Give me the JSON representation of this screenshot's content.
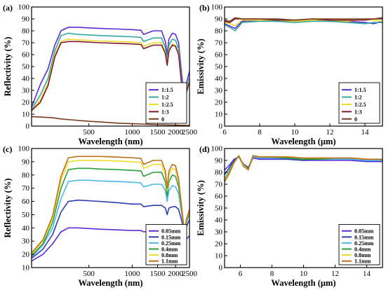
{
  "chart_data": [
    {
      "panel_label": "(a)",
      "type": "line",
      "xlabel": "Wavelength (nm)",
      "ylabel": "Reflectivity (%)",
      "xscale": "log",
      "xlim": [
        200,
        2500
      ],
      "ylim": [
        0,
        100
      ],
      "xticks": [
        500,
        1000,
        1500,
        2000,
        2500
      ],
      "xtick_labels": [
        "500",
        "1000",
        "1500",
        "2000",
        "2500"
      ],
      "yticks": [
        0,
        10,
        20,
        30,
        40,
        50,
        60,
        70,
        80,
        90,
        100
      ],
      "grid": false,
      "legend": "bottom-right",
      "series": [
        {
          "name": "1:1.5",
          "color": "#5b2bd6",
          "x": [
            200,
            230,
            260,
            290,
            320,
            360,
            420,
            500,
            600,
            800,
            1000,
            1150,
            1200,
            1400,
            1600,
            1700,
            1750,
            1800,
            1900,
            2000,
            2100,
            2200,
            2300,
            2400,
            2500
          ],
          "y": [
            16,
            35,
            48,
            68,
            80,
            83,
            83,
            82.5,
            82,
            81.5,
            81,
            80.5,
            77,
            80,
            80,
            71,
            60,
            73,
            78,
            77,
            70,
            45,
            24,
            38,
            46
          ]
        },
        {
          "name": "1:2",
          "color": "#31a8a0",
          "x": [
            200,
            230,
            260,
            290,
            320,
            360,
            420,
            500,
            600,
            800,
            1000,
            1150,
            1200,
            1400,
            1600,
            1700,
            1750,
            1800,
            1900,
            2000,
            2100,
            2200,
            2300,
            2400,
            2500
          ],
          "y": [
            14,
            26,
            40,
            63,
            76,
            78,
            77,
            76.5,
            76,
            75.5,
            75,
            74.5,
            71,
            74,
            74,
            66,
            55,
            68,
            73,
            72,
            65,
            40,
            22,
            33,
            41
          ]
        },
        {
          "name": "1:2.5",
          "color": "#ecdc2c",
          "x": [
            200,
            230,
            260,
            290,
            320,
            360,
            420,
            500,
            600,
            800,
            1000,
            1150,
            1200,
            1400,
            1600,
            1700,
            1750,
            1800,
            1900,
            2000,
            2100,
            2200,
            2300,
            2400,
            2500
          ],
          "y": [
            13,
            22,
            36,
            60,
            71,
            73,
            72.5,
            72,
            71.5,
            71,
            70.5,
            70,
            67,
            70,
            70,
            62,
            52,
            64,
            69,
            68,
            61,
            37,
            21,
            31,
            38
          ]
        },
        {
          "name": "1:3",
          "color": "#7e1a2c",
          "x": [
            200,
            230,
            260,
            290,
            320,
            360,
            420,
            500,
            600,
            800,
            1000,
            1150,
            1200,
            1400,
            1600,
            1700,
            1750,
            1800,
            1900,
            2000,
            2100,
            2200,
            2300,
            2400,
            2500
          ],
          "y": [
            13,
            20,
            34,
            58,
            70,
            71,
            71,
            70.5,
            70,
            69.5,
            69,
            68.5,
            65,
            68,
            68,
            61,
            51,
            63,
            68,
            67,
            60,
            36,
            20,
            30,
            37
          ]
        },
        {
          "name": "0",
          "color": "#7a3b1c",
          "x": [
            200,
            240,
            280,
            320,
            400,
            500,
            600,
            800,
            1000,
            1500,
            2000,
            2500
          ],
          "y": [
            8,
            7.5,
            7,
            6,
            5,
            4,
            3.5,
            2.5,
            2,
            1.2,
            0.8,
            0.5
          ]
        }
      ]
    },
    {
      "panel_label": "(b)",
      "type": "line",
      "xlabel": "Wavelength (μm)",
      "ylabel": "Emissivity (%)",
      "xlim": [
        6,
        15
      ],
      "ylim": [
        0,
        100
      ],
      "xticks": [
        6,
        8,
        10,
        12,
        14
      ],
      "yticks": [
        0,
        10,
        20,
        30,
        40,
        50,
        60,
        70,
        80,
        90,
        100
      ],
      "grid": false,
      "legend": "bottom-right",
      "series": [
        {
          "name": "1:1.5",
          "color": "#5b2bd6",
          "x": [
            6,
            6.3,
            6.6,
            7,
            8,
            9,
            10,
            11,
            12,
            13,
            14,
            14.5,
            15
          ],
          "y": [
            86,
            84,
            82,
            88,
            89,
            88,
            88,
            89,
            88,
            88,
            87,
            86,
            88
          ]
        },
        {
          "name": "1:2",
          "color": "#31a8a0",
          "x": [
            6,
            6.3,
            6.6,
            7,
            8,
            9,
            10,
            11,
            12,
            13,
            14,
            14.5,
            15
          ],
          "y": [
            85,
            83,
            80,
            87,
            88,
            88,
            87,
            88,
            88,
            87,
            86,
            87,
            87
          ]
        },
        {
          "name": "1:2.5",
          "color": "#ecdc2c",
          "x": [
            6,
            6.3,
            6.6,
            7,
            8,
            9,
            10,
            11,
            12,
            13,
            14,
            14.5,
            15
          ],
          "y": [
            87,
            86,
            84,
            89,
            89,
            89,
            88,
            89,
            89,
            88,
            90,
            89,
            88
          ]
        },
        {
          "name": "1:3",
          "color": "#7e1a2c",
          "x": [
            6,
            6.3,
            6.6,
            7,
            8,
            9,
            10,
            11,
            12,
            13,
            14,
            14.5,
            15
          ],
          "y": [
            88,
            87,
            90,
            90,
            90,
            89,
            89,
            90,
            89,
            89,
            89,
            90,
            90
          ]
        },
        {
          "name": "0",
          "color": "#7a3b1c",
          "x": [
            6,
            6.3,
            6.6,
            7,
            8,
            9,
            10,
            11,
            12,
            13,
            14,
            14.5,
            15
          ],
          "y": [
            89,
            88,
            91,
            90,
            90,
            90,
            89,
            90,
            90,
            90,
            90,
            90,
            91
          ]
        }
      ]
    },
    {
      "panel_label": "(c)",
      "type": "line",
      "xlabel": "Wavelength (nm)",
      "ylabel": "Reflectivity (%)",
      "xscale": "log",
      "xlim": [
        200,
        2500
      ],
      "ylim": [
        10,
        100
      ],
      "xticks": [
        500,
        1000,
        1500,
        2000,
        2500
      ],
      "xtick_labels": [
        "500",
        "1000",
        "1500",
        "2000",
        "2500"
      ],
      "yticks": [
        10,
        20,
        30,
        40,
        50,
        60,
        70,
        80,
        90,
        100
      ],
      "grid": false,
      "legend": "bottom-right",
      "series": [
        {
          "name": "0.05mm",
          "color": "#5b2bd6",
          "x": [
            200,
            240,
            280,
            320,
            360,
            420,
            500,
            600,
            800,
            1000,
            1150,
            1200,
            1400,
            1600,
            1700,
            1750,
            1800,
            1900,
            2000,
            2100,
            2200,
            2300,
            2400,
            2500
          ],
          "y": [
            15,
            20,
            28,
            37,
            40,
            40,
            39.5,
            39,
            38.5,
            38,
            38,
            37,
            38,
            38,
            36,
            33,
            37,
            38,
            38,
            37,
            33,
            30,
            32,
            34
          ]
        },
        {
          "name": "0.15mm",
          "color": "#2d3fb0",
          "x": [
            200,
            240,
            280,
            320,
            360,
            420,
            500,
            600,
            800,
            1000,
            1150,
            1200,
            1400,
            1600,
            1700,
            1750,
            1800,
            1900,
            2000,
            2100,
            2200,
            2300,
            2400,
            2500
          ],
          "y": [
            17,
            24,
            35,
            52,
            60,
            61,
            60.5,
            60,
            59,
            58,
            58,
            56,
            57,
            57,
            55,
            50,
            55,
            56,
            56,
            54,
            46,
            37,
            42,
            46
          ]
        },
        {
          "name": "0.25mm",
          "color": "#4ab8e8",
          "x": [
            200,
            240,
            280,
            320,
            360,
            420,
            500,
            600,
            800,
            1000,
            1150,
            1200,
            1400,
            1600,
            1700,
            1750,
            1800,
            1900,
            2000,
            2100,
            2200,
            2300,
            2400,
            2500
          ],
          "y": [
            18,
            27,
            40,
            62,
            75,
            76,
            76,
            75.5,
            75,
            74.5,
            74,
            71,
            73,
            73,
            68,
            60,
            68,
            72,
            71,
            66,
            52,
            38,
            45,
            50
          ]
        },
        {
          "name": "0.4mm",
          "color": "#2aa03a",
          "x": [
            200,
            240,
            280,
            320,
            360,
            420,
            500,
            600,
            800,
            1000,
            1150,
            1200,
            1400,
            1600,
            1700,
            1750,
            1800,
            1900,
            2000,
            2100,
            2200,
            2300,
            2400,
            2500
          ],
          "y": [
            19,
            28,
            44,
            70,
            84,
            85,
            85,
            84.5,
            84,
            83.5,
            83,
            79,
            82,
            82,
            75,
            64,
            75,
            80,
            79,
            71,
            54,
            38,
            46,
            52
          ]
        },
        {
          "name": "0.8mm",
          "color": "#ecdc2c",
          "x": [
            200,
            240,
            280,
            320,
            360,
            420,
            500,
            600,
            800,
            1000,
            1150,
            1200,
            1400,
            1600,
            1700,
            1750,
            1800,
            1900,
            2000,
            2100,
            2200,
            2300,
            2400,
            2500
          ],
          "y": [
            20,
            30,
            47,
            76,
            90,
            91,
            91,
            91,
            90.5,
            90,
            89.5,
            85,
            88,
            88,
            80,
            68,
            80,
            85,
            84,
            75,
            56,
            38,
            47,
            53
          ]
        },
        {
          "name": "1.1mm",
          "color": "#c0701a",
          "x": [
            200,
            240,
            280,
            320,
            360,
            420,
            500,
            600,
            800,
            1000,
            1150,
            1200,
            1400,
            1600,
            1700,
            1750,
            1800,
            1900,
            2000,
            2100,
            2200,
            2300,
            2400,
            2500
          ],
          "y": [
            21,
            31,
            49,
            79,
            93,
            94,
            94,
            94,
            93.5,
            93,
            92.5,
            88,
            91,
            91,
            83,
            70,
            83,
            88,
            87,
            77,
            57,
            38,
            48,
            54
          ]
        }
      ]
    },
    {
      "panel_label": "(d)",
      "type": "line",
      "xlabel": "Wavelength (μm)",
      "ylabel": "Emissivity (%)",
      "xlim": [
        5,
        15
      ],
      "ylim": [
        0,
        100
      ],
      "xticks": [
        6,
        8,
        10,
        12,
        14
      ],
      "yticks": [
        0,
        10,
        20,
        30,
        40,
        50,
        60,
        70,
        80,
        90,
        100
      ],
      "grid": false,
      "legend": "bottom-right",
      "series": [
        {
          "name": "0.05mm",
          "color": "#5b2bd6",
          "x": [
            5,
            5.3,
            5.6,
            5.9,
            6.2,
            6.5,
            6.8,
            7.2,
            8,
            9,
            10,
            11,
            12,
            13,
            14,
            15
          ],
          "y": [
            82,
            86,
            91,
            93,
            87,
            84,
            92,
            91,
            91,
            91,
            90,
            90,
            90,
            90,
            89,
            89
          ]
        },
        {
          "name": "0.15mm",
          "color": "#2d3fb0",
          "x": [
            5,
            5.3,
            5.6,
            5.9,
            6.2,
            6.5,
            6.8,
            7.2,
            8,
            9,
            10,
            11,
            12,
            13,
            14,
            15
          ],
          "y": [
            78,
            84,
            90,
            93,
            86,
            84,
            93,
            92,
            92,
            91,
            90,
            91,
            91,
            91,
            90,
            90
          ]
        },
        {
          "name": "0.25mm",
          "color": "#4ab8e8",
          "x": [
            5,
            5.3,
            5.6,
            5.9,
            6.2,
            6.5,
            6.8,
            7.2,
            8,
            9,
            10,
            11,
            12,
            13,
            14,
            15
          ],
          "y": [
            74,
            82,
            89,
            93,
            86,
            83,
            93,
            92,
            92,
            92,
            91,
            91,
            91,
            91,
            90,
            90
          ]
        },
        {
          "name": "0.4mm",
          "color": "#2aa03a",
          "x": [
            5,
            5.3,
            5.6,
            5.9,
            6.2,
            6.5,
            6.8,
            7.2,
            8,
            9,
            10,
            11,
            12,
            13,
            14,
            15
          ],
          "y": [
            73,
            81,
            89,
            94,
            86,
            83,
            94,
            93,
            93,
            92,
            91,
            91,
            92,
            92,
            91,
            91
          ]
        },
        {
          "name": "0.8mm",
          "color": "#ecdc2c",
          "x": [
            5,
            5.3,
            5.6,
            5.9,
            6.2,
            6.5,
            6.8,
            7.2,
            8,
            9,
            10,
            11,
            12,
            13,
            14,
            15
          ],
          "y": [
            73,
            80,
            88,
            94,
            86,
            82,
            94,
            93,
            93,
            93,
            92,
            92,
            92,
            92,
            91,
            91
          ]
        },
        {
          "name": "1.1mm",
          "color": "#c0701a",
          "x": [
            5,
            5.3,
            5.6,
            5.9,
            6.2,
            6.5,
            6.8,
            7.2,
            8,
            9,
            10,
            11,
            12,
            13,
            14,
            15
          ],
          "y": [
            72,
            79,
            88,
            94,
            85,
            82,
            94,
            93,
            93,
            93,
            92,
            92,
            92,
            92,
            91,
            91
          ]
        }
      ]
    }
  ]
}
